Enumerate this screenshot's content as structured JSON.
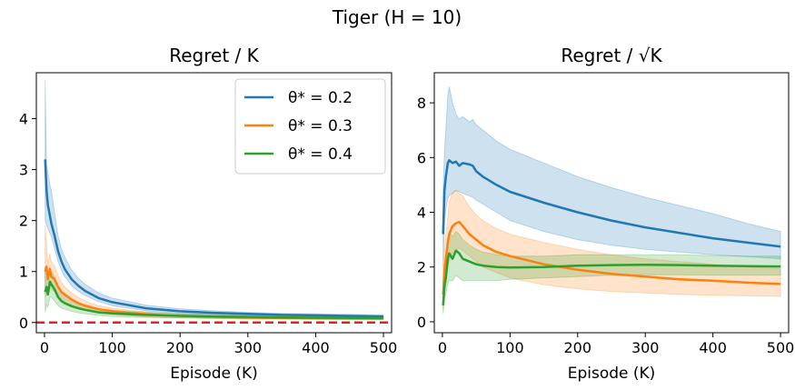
{
  "figure": {
    "title": "Tiger (H = 10)"
  },
  "colors": {
    "blue": "#1f77b4",
    "orange": "#ff7f0e",
    "green": "#2ca02c",
    "reference": "#d62728"
  },
  "chart_data": [
    {
      "type": "line",
      "title": "Regret / K",
      "xlabel": "Episode (K)",
      "ylabel": "",
      "xlim": [
        -12,
        512
      ],
      "ylim": [
        -0.2,
        4.9
      ],
      "xticks": [
        0,
        100,
        200,
        300,
        400,
        500
      ],
      "yticks": [
        0,
        1,
        2,
        3,
        4
      ],
      "legend": {
        "location": "top-right",
        "entries": [
          "θ* = 0.2",
          "θ* = 0.3",
          "θ* = 0.4"
        ]
      },
      "reference_line": {
        "y": 0,
        "style": "dashed",
        "color": "#d62728"
      },
      "grid": false,
      "series": [
        {
          "name": "θ* = 0.2",
          "color": "#1f77b4",
          "x": [
            1,
            3,
            5,
            8,
            10,
            15,
            20,
            25,
            30,
            40,
            50,
            60,
            80,
            100,
            150,
            200,
            250,
            300,
            350,
            400,
            450,
            500
          ],
          "y": [
            3.2,
            2.6,
            2.3,
            2.1,
            1.95,
            1.7,
            1.4,
            1.2,
            1.05,
            0.85,
            0.72,
            0.62,
            0.48,
            0.4,
            0.28,
            0.22,
            0.19,
            0.17,
            0.15,
            0.14,
            0.13,
            0.12
          ],
          "lower": [
            2.0,
            1.9,
            1.85,
            1.75,
            1.7,
            1.45,
            1.2,
            1.02,
            0.9,
            0.72,
            0.61,
            0.53,
            0.41,
            0.33,
            0.23,
            0.18,
            0.16,
            0.14,
            0.12,
            0.11,
            0.1,
            0.09
          ],
          "upper": [
            4.75,
            3.1,
            2.95,
            2.7,
            2.6,
            2.15,
            1.7,
            1.45,
            1.28,
            1.03,
            0.87,
            0.75,
            0.58,
            0.48,
            0.34,
            0.27,
            0.23,
            0.2,
            0.18,
            0.17,
            0.16,
            0.15
          ]
        },
        {
          "name": "θ* = 0.3",
          "color": "#ff7f0e",
          "x": [
            1,
            3,
            5,
            8,
            10,
            15,
            20,
            25,
            30,
            40,
            50,
            60,
            80,
            100,
            150,
            200,
            250,
            300,
            350,
            400,
            450,
            500
          ],
          "y": [
            1.0,
            1.1,
            0.85,
            1.05,
            0.9,
            0.85,
            0.7,
            0.6,
            0.55,
            0.45,
            0.38,
            0.33,
            0.26,
            0.22,
            0.16,
            0.13,
            0.11,
            0.1,
            0.09,
            0.085,
            0.08,
            0.075
          ],
          "lower": [
            0.5,
            0.6,
            0.55,
            0.7,
            0.65,
            0.6,
            0.5,
            0.44,
            0.4,
            0.33,
            0.28,
            0.24,
            0.19,
            0.16,
            0.11,
            0.09,
            0.08,
            0.07,
            0.065,
            0.06,
            0.055,
            0.05
          ],
          "upper": [
            1.9,
            1.5,
            1.15,
            1.35,
            1.2,
            1.1,
            0.92,
            0.78,
            0.7,
            0.58,
            0.49,
            0.42,
            0.33,
            0.28,
            0.21,
            0.17,
            0.14,
            0.13,
            0.12,
            0.11,
            0.1,
            0.1
          ]
        },
        {
          "name": "θ* = 0.4",
          "color": "#2ca02c",
          "x": [
            1,
            3,
            5,
            8,
            10,
            15,
            20,
            25,
            30,
            40,
            50,
            60,
            80,
            100,
            150,
            200,
            250,
            300,
            350,
            400,
            450,
            500
          ],
          "y": [
            0.6,
            0.7,
            0.55,
            0.8,
            0.75,
            0.65,
            0.5,
            0.42,
            0.38,
            0.32,
            0.28,
            0.25,
            0.2,
            0.18,
            0.15,
            0.13,
            0.12,
            0.11,
            0.1,
            0.095,
            0.09,
            0.09
          ],
          "lower": [
            0.2,
            0.35,
            0.3,
            0.5,
            0.5,
            0.42,
            0.33,
            0.28,
            0.26,
            0.22,
            0.19,
            0.17,
            0.14,
            0.12,
            0.1,
            0.09,
            0.08,
            0.075,
            0.07,
            0.065,
            0.06,
            0.06
          ],
          "upper": [
            1.0,
            1.0,
            0.85,
            1.05,
            1.0,
            0.9,
            0.7,
            0.58,
            0.52,
            0.44,
            0.38,
            0.34,
            0.27,
            0.24,
            0.2,
            0.17,
            0.16,
            0.15,
            0.14,
            0.13,
            0.12,
            0.12
          ]
        }
      ]
    },
    {
      "type": "line",
      "title": "Regret / √K",
      "xlabel": "Episode (K)",
      "ylabel": "",
      "xlim": [
        -12,
        512
      ],
      "ylim": [
        -0.4,
        9.1
      ],
      "xticks": [
        0,
        100,
        200,
        300,
        400,
        500
      ],
      "yticks": [
        0,
        2,
        4,
        6,
        8
      ],
      "grid": false,
      "series": [
        {
          "name": "θ* = 0.2",
          "color": "#1f77b4",
          "x": [
            1,
            3,
            5,
            8,
            10,
            15,
            20,
            25,
            30,
            40,
            45,
            50,
            60,
            80,
            100,
            150,
            200,
            250,
            300,
            350,
            400,
            450,
            500
          ],
          "y": [
            3.2,
            4.8,
            5.3,
            5.8,
            5.9,
            5.8,
            5.85,
            5.7,
            5.8,
            5.75,
            5.7,
            5.5,
            5.3,
            5.0,
            4.75,
            4.35,
            4.0,
            3.7,
            3.45,
            3.25,
            3.05,
            2.9,
            2.75
          ],
          "lower": [
            2.0,
            3.6,
            4.1,
            4.5,
            4.6,
            4.7,
            4.8,
            4.75,
            4.7,
            4.6,
            4.55,
            4.45,
            4.3,
            4.0,
            3.7,
            3.3,
            3.0,
            2.8,
            2.65,
            2.55,
            2.45,
            2.38,
            2.3
          ],
          "upper": [
            4.75,
            6.2,
            7.0,
            8.3,
            8.6,
            8.0,
            7.6,
            7.4,
            7.5,
            7.3,
            7.4,
            7.2,
            7.0,
            6.6,
            6.3,
            5.8,
            5.3,
            4.9,
            4.55,
            4.25,
            3.95,
            3.6,
            3.3
          ]
        },
        {
          "name": "θ* = 0.3",
          "color": "#ff7f0e",
          "x": [
            1,
            3,
            5,
            8,
            10,
            15,
            20,
            25,
            30,
            40,
            50,
            60,
            80,
            100,
            150,
            200,
            250,
            300,
            350,
            400,
            450,
            500
          ],
          "y": [
            1.0,
            1.9,
            2.3,
            2.9,
            3.2,
            3.5,
            3.6,
            3.65,
            3.5,
            3.2,
            3.0,
            2.8,
            2.55,
            2.4,
            2.1,
            1.9,
            1.75,
            1.65,
            1.55,
            1.5,
            1.43,
            1.38
          ],
          "lower": [
            0.5,
            1.0,
            1.4,
            2.0,
            2.2,
            2.5,
            2.6,
            2.7,
            2.6,
            2.4,
            2.2,
            2.0,
            1.8,
            1.6,
            1.35,
            1.2,
            1.1,
            1.05,
            1.0,
            0.97,
            0.95,
            0.93
          ],
          "upper": [
            1.9,
            2.6,
            3.2,
            3.8,
            4.4,
            4.7,
            4.8,
            4.7,
            4.6,
            4.2,
            3.9,
            3.7,
            3.4,
            3.2,
            2.9,
            2.65,
            2.45,
            2.3,
            2.2,
            2.1,
            2.0,
            1.95
          ]
        },
        {
          "name": "θ* = 0.4",
          "color": "#2ca02c",
          "x": [
            1,
            3,
            5,
            8,
            10,
            15,
            20,
            25,
            30,
            40,
            50,
            60,
            80,
            100,
            150,
            200,
            250,
            300,
            350,
            400,
            450,
            500
          ],
          "y": [
            0.6,
            1.3,
            1.6,
            2.3,
            2.5,
            2.3,
            2.6,
            2.5,
            2.3,
            2.2,
            2.1,
            2.05,
            2.0,
            1.98,
            2.0,
            2.05,
            2.07,
            2.08,
            2.07,
            2.05,
            2.03,
            2.02
          ],
          "lower": [
            0.3,
            0.8,
            1.0,
            1.4,
            1.5,
            1.5,
            1.7,
            1.6,
            1.5,
            1.5,
            1.5,
            1.5,
            1.5,
            1.55,
            1.6,
            1.65,
            1.7,
            1.72,
            1.72,
            1.7,
            1.7,
            1.7
          ],
          "upper": [
            1.0,
            1.8,
            2.3,
            3.0,
            3.3,
            3.1,
            3.3,
            3.2,
            3.0,
            2.8,
            2.65,
            2.55,
            2.45,
            2.4,
            2.4,
            2.45,
            2.45,
            2.45,
            2.45,
            2.42,
            2.4,
            2.4
          ]
        }
      ]
    }
  ]
}
